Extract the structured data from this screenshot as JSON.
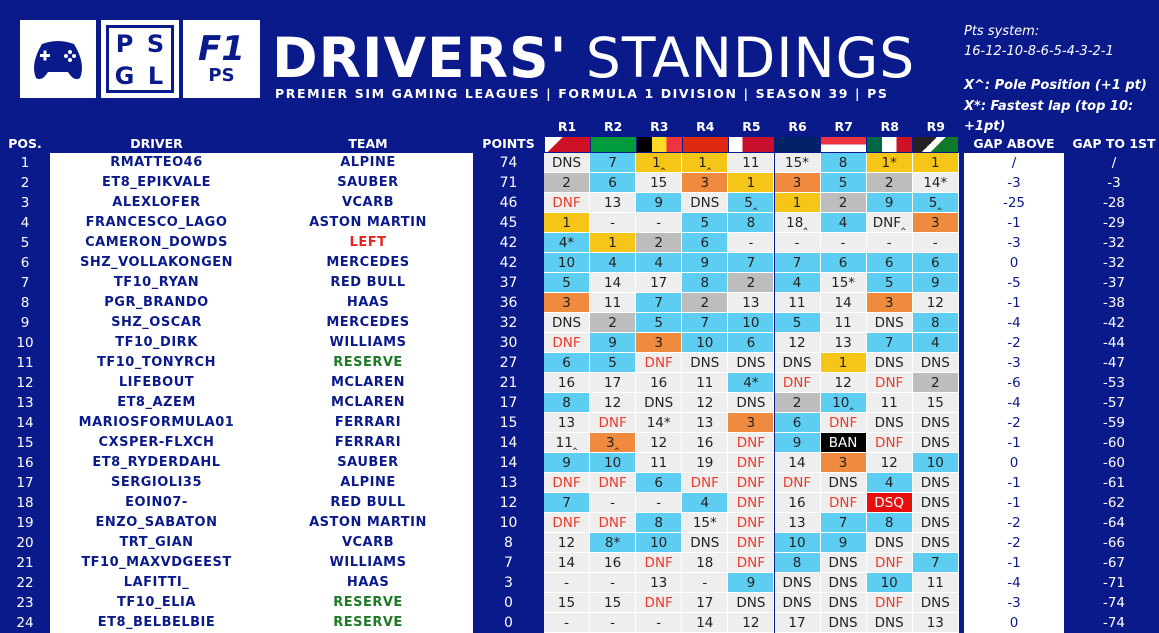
{
  "header": {
    "title_bold": "DRIVERS'",
    "title_light": "STANDINGS",
    "subtitle": "PREMIER SIM GAMING LEAGUES | FORMULA 1 DIVISION | SEASON 39 | PS",
    "logo_psgl": [
      "P",
      "S",
      "G",
      "L"
    ],
    "logo_f1_big": "F1",
    "logo_f1_small": "PS"
  },
  "points_system": {
    "label": "Pts system:",
    "values": "16-12-10-8-6-5-4-3-2-1",
    "pole_note": "X^: Pole Position (+1 pt)",
    "fl_note": "X*: Fastest lap (top 10: +1pt)"
  },
  "columns": {
    "pos": "POS.",
    "driver": "DRIVER",
    "team": "TEAM",
    "points": "POINTS",
    "races": [
      "R1",
      "R2",
      "R3",
      "R4",
      "R5",
      "R6",
      "R7",
      "R8",
      "R9"
    ],
    "gap_above": "GAP ABOVE",
    "gap_first": "GAP TO 1ST"
  },
  "colors": {
    "background": "#0a1a8a",
    "first": "#f5c518",
    "second": "#bdbdbd",
    "third": "#ef8a3e",
    "points": "#5ecdf2",
    "nopoints": "#eeeeee",
    "dnf": "#ef3a2a",
    "ban": "#000000",
    "dsq": "#e80e0e",
    "team_left": "#e8231c",
    "team_reserve": "#1d7a26",
    "team_normal": "#0a1a8a"
  },
  "drivers": [
    {
      "pos": "1",
      "name": "RMATTEO46",
      "team": "ALPINE",
      "points": "74",
      "results": [
        "DNS",
        "7",
        "1^",
        "1^",
        "11",
        "15*",
        "8",
        "1*",
        "1"
      ],
      "gap_above": "/",
      "gap_first": "/"
    },
    {
      "pos": "2",
      "name": "ET8_EPIKVALE",
      "team": "SAUBER",
      "points": "71",
      "results": [
        "2",
        "6",
        "15",
        "3",
        "1",
        "3",
        "5",
        "2",
        "14*"
      ],
      "gap_above": "-3",
      "gap_first": "-3"
    },
    {
      "pos": "3",
      "name": "ALEXLOFER",
      "team": "VCARB",
      "points": "46",
      "results": [
        "DNF",
        "13",
        "9",
        "DNS",
        "5^",
        "1",
        "2",
        "9",
        "5^"
      ],
      "gap_above": "-25",
      "gap_first": "-28"
    },
    {
      "pos": "4",
      "name": "FRANCESCO_LAGO",
      "team": "ASTON MARTIN",
      "points": "45",
      "results": [
        "1",
        "-",
        "-",
        "5",
        "8",
        "18^",
        "4",
        "DNF^",
        "3"
      ],
      "gap_above": "-1",
      "gap_first": "-29"
    },
    {
      "pos": "5",
      "name": "CAMERON_DOWDS",
      "team": "LEFT",
      "points": "42",
      "results": [
        "4*",
        "1",
        "2",
        "6",
        "-",
        "-",
        "-",
        "-",
        "-"
      ],
      "gap_above": "-3",
      "gap_first": "-32"
    },
    {
      "pos": "6",
      "name": "SHZ_VOLLAKONGEN",
      "team": "MERCEDES",
      "points": "42",
      "results": [
        "10",
        "4",
        "4",
        "9",
        "7",
        "7",
        "6",
        "6",
        "6"
      ],
      "gap_above": "0",
      "gap_first": "-32"
    },
    {
      "pos": "7",
      "name": "TF10_RYAN",
      "team": "RED BULL",
      "points": "37",
      "results": [
        "5",
        "14",
        "17",
        "8",
        "2",
        "4",
        "15*",
        "5",
        "9"
      ],
      "gap_above": "-5",
      "gap_first": "-37"
    },
    {
      "pos": "8",
      "name": "PGR_BRANDO",
      "team": "HAAS",
      "points": "36",
      "results": [
        "3",
        "11",
        "7",
        "2",
        "13",
        "11",
        "14",
        "3",
        "12"
      ],
      "gap_above": "-1",
      "gap_first": "-38"
    },
    {
      "pos": "9",
      "name": "SHZ_OSCAR",
      "team": "MERCEDES",
      "points": "32",
      "results": [
        "DNS",
        "2",
        "5",
        "7",
        "10",
        "5",
        "11",
        "DNS",
        "8"
      ],
      "gap_above": "-4",
      "gap_first": "-42"
    },
    {
      "pos": "10",
      "name": "TF10_DIRK",
      "team": "WILLIAMS",
      "points": "30",
      "results": [
        "DNF",
        "9",
        "3",
        "10",
        "6",
        "12",
        "13",
        "7",
        "4"
      ],
      "gap_above": "-2",
      "gap_first": "-44"
    },
    {
      "pos": "11",
      "name": "TF10_TONYRCH",
      "team": "RESERVE",
      "points": "27",
      "results": [
        "6",
        "5",
        "DNF",
        "DNS",
        "DNS",
        "DNS",
        "1",
        "DNS",
        "DNS"
      ],
      "gap_above": "-3",
      "gap_first": "-47"
    },
    {
      "pos": "12",
      "name": "LIFEBOUT",
      "team": "MCLAREN",
      "points": "21",
      "results": [
        "16",
        "17",
        "16",
        "11",
        "4*",
        "DNF",
        "12",
        "DNF",
        "2"
      ],
      "gap_above": "-6",
      "gap_first": "-53"
    },
    {
      "pos": "13",
      "name": "ET8_AZEM",
      "team": "MCLAREN",
      "points": "17",
      "results": [
        "8",
        "12",
        "DNS",
        "12",
        "DNS",
        "2",
        "10^",
        "11",
        "15"
      ],
      "gap_above": "-4",
      "gap_first": "-57"
    },
    {
      "pos": "14",
      "name": "MARIOSFORMULA01",
      "team": "FERRARI",
      "points": "15",
      "results": [
        "13",
        "DNF",
        "14*",
        "13",
        "3",
        "6",
        "DNF",
        "DNS",
        "DNS"
      ],
      "gap_above": "-2",
      "gap_first": "-59"
    },
    {
      "pos": "15",
      "name": "CXSPER-FLXCH",
      "team": "FERRARI",
      "points": "14",
      "results": [
        "11^",
        "3^",
        "12",
        "16",
        "DNF",
        "9",
        "BAN",
        "DNF",
        "DNS"
      ],
      "gap_above": "-1",
      "gap_first": "-60"
    },
    {
      "pos": "16",
      "name": "ET8_RYDERDAHL",
      "team": "SAUBER",
      "points": "14",
      "results": [
        "9",
        "10",
        "11",
        "19",
        "DNF",
        "14",
        "3",
        "12",
        "10"
      ],
      "gap_above": "0",
      "gap_first": "-60"
    },
    {
      "pos": "17",
      "name": "SERGIOLI35",
      "team": "ALPINE",
      "points": "13",
      "results": [
        "DNF",
        "DNF",
        "6",
        "DNF",
        "DNF",
        "DNF",
        "DNS",
        "4",
        "DNS"
      ],
      "gap_above": "-1",
      "gap_first": "-61"
    },
    {
      "pos": "18",
      "name": "EOIN07-",
      "team": "RED BULL",
      "points": "12",
      "results": [
        "7",
        "-",
        "-",
        "4",
        "DNF",
        "16",
        "DNF",
        "DSQ",
        "DNS"
      ],
      "gap_above": "-1",
      "gap_first": "-62"
    },
    {
      "pos": "19",
      "name": "ENZO_SABATON",
      "team": "ASTON MARTIN",
      "points": "10",
      "results": [
        "DNF",
        "DNF",
        "8",
        "15*",
        "DNF",
        "13",
        "7",
        "8",
        "DNS"
      ],
      "gap_above": "-2",
      "gap_first": "-64"
    },
    {
      "pos": "20",
      "name": "TRT_GIAN",
      "team": "VCARB",
      "points": "8",
      "results": [
        "12",
        "8*",
        "10",
        "DNS",
        "DNF",
        "10",
        "9",
        "DNS",
        "DNS"
      ],
      "gap_above": "-2",
      "gap_first": "-66"
    },
    {
      "pos": "21",
      "name": "TF10_MAXVDGEEST",
      "team": "WILLIAMS",
      "points": "7",
      "results": [
        "14",
        "16",
        "DNF",
        "18",
        "DNF",
        "8",
        "DNS",
        "DNF",
        "7"
      ],
      "gap_above": "-1",
      "gap_first": "-67"
    },
    {
      "pos": "22",
      "name": "LAFITTI_",
      "team": "HAAS",
      "points": "3",
      "results": [
        "-",
        "-",
        "13",
        "-",
        "9",
        "DNS",
        "DNS",
        "10",
        "11"
      ],
      "gap_above": "-4",
      "gap_first": "-71"
    },
    {
      "pos": "23",
      "name": "TF10_ELIA",
      "team": "RESERVE",
      "points": "0",
      "results": [
        "15",
        "15",
        "DNF",
        "17",
        "DNS",
        "DNS",
        "DNS",
        "DNF",
        "DNS"
      ],
      "gap_above": "-3",
      "gap_first": "-74"
    },
    {
      "pos": "24",
      "name": "ET8_BELBELBIE",
      "team": "RESERVE",
      "points": "0",
      "results": [
        "-",
        "-",
        "-",
        "14",
        "12",
        "17",
        "DNS",
        "DNS",
        "13"
      ],
      "gap_above": "0",
      "gap_first": "-74"
    }
  ]
}
